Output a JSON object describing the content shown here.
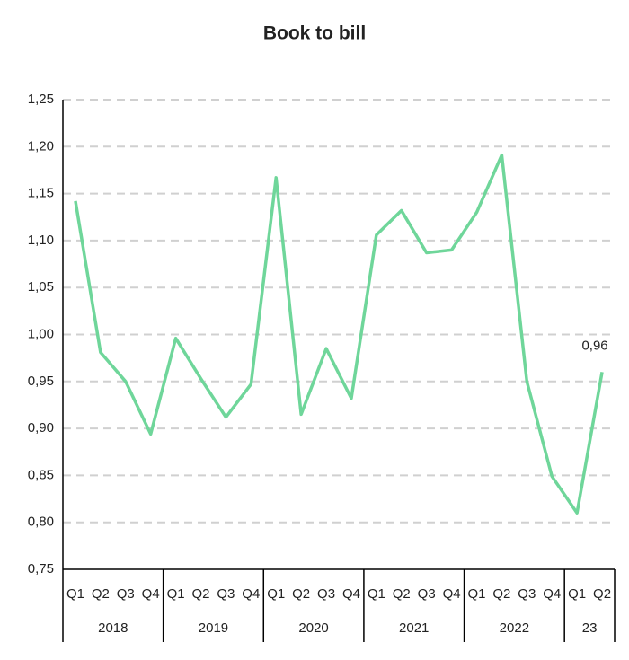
{
  "chart_data": {
    "type": "line",
    "title": "Book to bill",
    "groups": [
      {
        "name": "2018",
        "categories": [
          "Q1",
          "Q2",
          "Q3",
          "Q4"
        ]
      },
      {
        "name": "2019",
        "categories": [
          "Q1",
          "Q2",
          "Q3",
          "Q4"
        ]
      },
      {
        "name": "2020",
        "categories": [
          "Q1",
          "Q2",
          "Q3",
          "Q4"
        ]
      },
      {
        "name": "2021",
        "categories": [
          "Q1",
          "Q2",
          "Q3",
          "Q4"
        ]
      },
      {
        "name": "2022",
        "categories": [
          "Q1",
          "Q2",
          "Q3",
          "Q4"
        ]
      },
      {
        "name": "23",
        "categories": [
          "Q1",
          "Q2"
        ]
      }
    ],
    "series": [
      {
        "color": "#6fd69a",
        "values": [
          1.142,
          0.981,
          0.95,
          0.894,
          0.996,
          0.953,
          0.912,
          0.947,
          1.167,
          0.915,
          0.985,
          0.932,
          1.106,
          1.132,
          1.087,
          1.09,
          1.13,
          1.191,
          0.95,
          0.849,
          0.81,
          0.96
        ],
        "value_labels": [
          null,
          null,
          null,
          null,
          null,
          null,
          null,
          null,
          null,
          null,
          null,
          null,
          null,
          null,
          null,
          null,
          null,
          null,
          null,
          null,
          null,
          "0,96"
        ]
      }
    ],
    "ylim": [
      0.75,
      1.25
    ],
    "yticks": [
      {
        "value": 0.75,
        "label": "0,75"
      },
      {
        "value": 0.8,
        "label": "0,80"
      },
      {
        "value": 0.85,
        "label": "0,85"
      },
      {
        "value": 0.9,
        "label": "0,90"
      },
      {
        "value": 0.95,
        "label": "0,95"
      },
      {
        "value": 1.0,
        "label": "1,00"
      },
      {
        "value": 1.05,
        "label": "1,05"
      },
      {
        "value": 1.1,
        "label": "1,10"
      },
      {
        "value": 1.15,
        "label": "1,15"
      },
      {
        "value": 1.2,
        "label": "1,20"
      },
      {
        "value": 1.25,
        "label": "1,25"
      }
    ],
    "grid": true
  }
}
